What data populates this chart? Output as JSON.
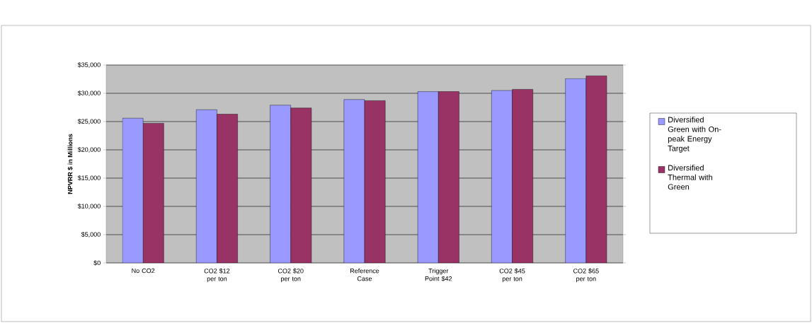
{
  "chart_data": {
    "type": "bar",
    "ylabel": "NPVRR $ in Millions",
    "categories": [
      "No CO2",
      "CO2 $12 per ton",
      "CO2 $20 per ton",
      "Reference Case",
      "Trigger Point $42",
      "CO2 $45 per ton",
      "CO2 $65 per ton"
    ],
    "series": [
      {
        "name": "Diversified Green with On-peak Energy Target",
        "color": "#9999ff",
        "values": [
          25600,
          27100,
          27900,
          28900,
          30300,
          30500,
          32600
        ]
      },
      {
        "name": "Diversified Thermal with Green",
        "color": "#993366",
        "values": [
          24700,
          26300,
          27400,
          28700,
          30300,
          30700,
          33100
        ]
      }
    ],
    "ylim": [
      0,
      35000
    ],
    "yticks": [
      {
        "value": 0,
        "label": "$0"
      },
      {
        "value": 5000,
        "label": "$5,000"
      },
      {
        "value": 10000,
        "label": "$10,000"
      },
      {
        "value": 15000,
        "label": "$15,000"
      },
      {
        "value": 20000,
        "label": "$20,000"
      },
      {
        "value": 25000,
        "label": "$25,000"
      },
      {
        "value": 30000,
        "label": "$30,000"
      },
      {
        "value": 35000,
        "label": "$35,000"
      }
    ],
    "grid": "y",
    "legend": "right"
  }
}
